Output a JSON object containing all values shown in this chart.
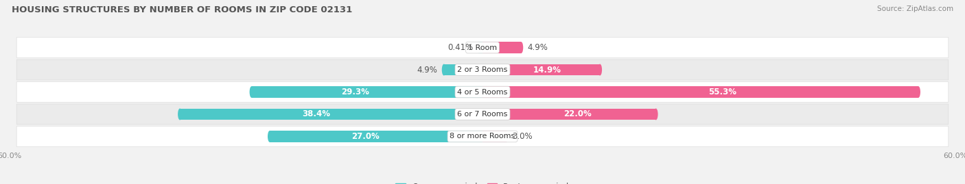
{
  "title": "HOUSING STRUCTURES BY NUMBER OF ROOMS IN ZIP CODE 02131",
  "source": "Source: ZipAtlas.com",
  "categories": [
    "1 Room",
    "2 or 3 Rooms",
    "4 or 5 Rooms",
    "6 or 7 Rooms",
    "8 or more Rooms"
  ],
  "owner_values": [
    0.41,
    4.9,
    29.3,
    38.4,
    27.0
  ],
  "renter_values": [
    4.9,
    14.9,
    55.3,
    22.0,
    3.0
  ],
  "owner_color": "#4DC8C8",
  "renter_color": "#F06292",
  "owner_color_light": "#A8DFDF",
  "renter_color_light": "#F8BBD0",
  "axis_limit": 60.0,
  "bg_color": "#f2f2f2",
  "row_color_even": "#ffffff",
  "row_color_odd": "#ebebeb",
  "bar_height": 0.52,
  "label_fontsize": 8.5,
  "title_fontsize": 9.5,
  "source_fontsize": 7.5,
  "legend_fontsize": 8.5,
  "category_fontsize": 8.0,
  "axis_label_fontsize": 8.0,
  "inside_label_threshold": 10
}
